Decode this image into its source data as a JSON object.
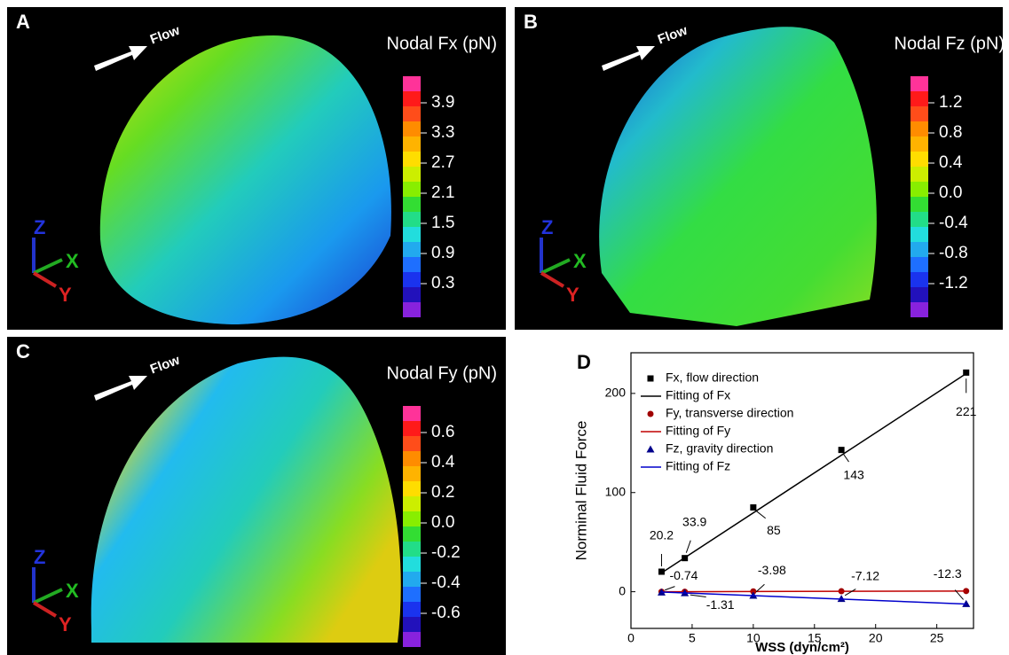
{
  "panels": [
    {
      "label": "A",
      "flow": "Flow",
      "title": "Nodal Fx (pN)",
      "colorbar_labels": [
        "3.9",
        "3.3",
        "2.7",
        "2.1",
        "1.5",
        "0.9",
        "0.3"
      ],
      "axes": {
        "z": "Z",
        "x": "X",
        "y": "Y"
      }
    },
    {
      "label": "B",
      "flow": "Flow",
      "title": "Nodal Fz (pN)",
      "colorbar_labels": [
        "1.2",
        "0.8",
        "0.4",
        "0.0",
        "-0.4",
        "-0.8",
        "-1.2"
      ],
      "axes": {
        "z": "Z",
        "x": "X",
        "y": "Y"
      }
    },
    {
      "label": "C",
      "flow": "Flow",
      "title": "Nodal Fy (pN)",
      "colorbar_labels": [
        "0.6",
        "0.4",
        "0.2",
        "0.0",
        "-0.2",
        "-0.4",
        "-0.6"
      ],
      "axes": {
        "z": "Z",
        "x": "X",
        "y": "Y"
      }
    }
  ],
  "colorbar_colors": [
    "#ff3399",
    "#ff1a1a",
    "#ff4d1a",
    "#ff8c00",
    "#ffb300",
    "#ffdd00",
    "#ccee00",
    "#88ee00",
    "#33dd33",
    "#22dd88",
    "#22dddd",
    "#22aaee",
    "#1e6fff",
    "#1a33ee",
    "#2211bb",
    "#8822dd"
  ],
  "chart_data": {
    "type": "scatter",
    "label": "D",
    "x_label": "WSS (dyn/cm²)",
    "y_label": "Norminal Fluid Force",
    "xlim": [
      0,
      28
    ],
    "ylim": [
      -37,
      241
    ],
    "xticks": [
      0,
      5,
      10,
      15,
      20,
      25
    ],
    "yticks": [
      0,
      100,
      200
    ],
    "series": [
      {
        "name": "Fx, flow direction",
        "mode": "marker",
        "marker": "square",
        "color": "#000000",
        "x": [
          2.5,
          4.4,
          10,
          17.2,
          27.4
        ],
        "values": [
          20.2,
          33.9,
          85,
          143,
          221
        ],
        "labeled": true
      },
      {
        "name": "Fitting of Fx",
        "mode": "line",
        "color": "#000000",
        "x": [
          2.5,
          27.4
        ],
        "values": [
          19,
          220
        ]
      },
      {
        "name": "Fy, transverse direction",
        "mode": "marker",
        "marker": "circle",
        "color": "#a00000",
        "x": [
          2.5,
          4.4,
          10,
          17.2,
          27.4
        ],
        "values": [
          0,
          0,
          0.3,
          0.5,
          0.7
        ]
      },
      {
        "name": "Fitting of Fy",
        "mode": "line",
        "color": "#c00000",
        "x": [
          2.5,
          27.4
        ],
        "values": [
          0,
          0.7
        ]
      },
      {
        "name": "Fz, gravity direction",
        "mode": "marker",
        "marker": "triangle",
        "color": "#00008b",
        "x": [
          2.5,
          4.4,
          10,
          17.2,
          27.4
        ],
        "values": [
          -0.74,
          -1.31,
          -3.98,
          -7.12,
          -12.3
        ],
        "labeled": true
      },
      {
        "name": "Fitting of Fz",
        "mode": "line",
        "color": "#0000cc",
        "x": [
          2.5,
          27.4
        ],
        "values": [
          -0.3,
          -12.4
        ]
      }
    ]
  }
}
